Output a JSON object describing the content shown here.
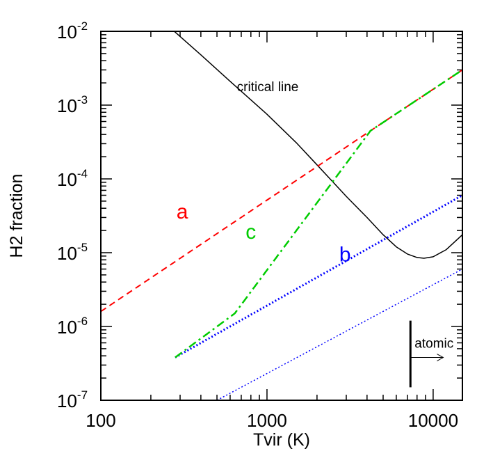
{
  "chart_data": {
    "type": "line",
    "xlabel": "Tvir (K)",
    "ylabel": "H2 fraction",
    "xscale": "log",
    "yscale": "log",
    "xlim": [
      100,
      15000
    ],
    "ylim": [
      1e-07,
      0.01
    ],
    "x_ticks": [
      {
        "value": 100,
        "label": "100"
      },
      {
        "value": 1000,
        "label": "1000"
      },
      {
        "value": 10000,
        "label": "10000"
      }
    ],
    "y_ticks": [
      {
        "value": 1e-07,
        "base": "10",
        "exp": "-7"
      },
      {
        "value": 1e-06,
        "base": "10",
        "exp": "-6"
      },
      {
        "value": 1e-05,
        "base": "10",
        "exp": "-5"
      },
      {
        "value": 0.0001,
        "base": "10",
        "exp": "-4"
      },
      {
        "value": 0.001,
        "base": "10",
        "exp": "-3"
      },
      {
        "value": 0.01,
        "base": "10",
        "exp": "-2"
      }
    ],
    "series": [
      {
        "id": "critical",
        "label": "critical line",
        "color": "#000000",
        "style": "solid",
        "x": [
          270,
          400,
          600,
          1000,
          1500,
          2000,
          3000,
          4000,
          5000,
          6000,
          7000,
          8000,
          8800,
          10000,
          12000,
          15000
        ],
        "y": [
          0.0105,
          0.0048,
          0.0021,
          0.00075,
          0.00031,
          0.000155,
          5.8e-05,
          3e-05,
          1.75e-05,
          1.2e-05,
          9.6e-06,
          8.6e-06,
          8.4e-06,
          8.8e-06,
          1.1e-05,
          1.75e-05
        ]
      },
      {
        "id": "a",
        "label": "a",
        "color": "#ff0000",
        "style": "dashed",
        "x": [
          100,
          4200,
          15000
        ],
        "y": [
          1.6e-06,
          0.00045,
          0.003
        ]
      },
      {
        "id": "b",
        "label": "b",
        "color": "#0000ff",
        "style": "dotted",
        "x": [
          280,
          15000
        ],
        "y": [
          3.8e-07,
          6e-05
        ]
      },
      {
        "id": "c",
        "label": "c",
        "color": "#00cc00",
        "style": "dashdot",
        "x": [
          280,
          640,
          4200,
          15000
        ],
        "y": [
          3.8e-07,
          1.5e-06,
          0.00045,
          0.003
        ]
      },
      {
        "id": "b-thin",
        "label": "",
        "color": "#0000ff",
        "style": "dotted-thin",
        "x": [
          500,
          15000
        ],
        "y": [
          1e-07,
          6e-06
        ]
      }
    ],
    "annotations": [
      {
        "id": "critical-line-label",
        "text": "critical line"
      },
      {
        "id": "atomic-label",
        "text": "atomic",
        "marker_x": 7300,
        "marker_y": [
          1.5e-07,
          1.2e-06
        ],
        "arrow_to_x": 11500,
        "arrow_y": 3.8e-07
      }
    ]
  }
}
